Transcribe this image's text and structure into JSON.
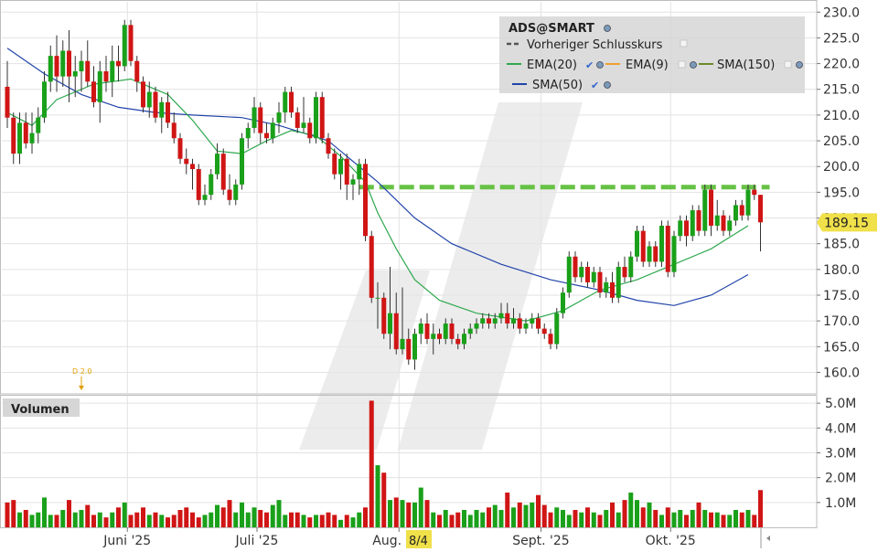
{
  "chart_data": [
    {
      "type": "candlestick",
      "title": "ADS@SMART",
      "ylim": [
        156,
        232
      ],
      "y_ticks": [
        230,
        225,
        220,
        215,
        210,
        205,
        200,
        195,
        190,
        185,
        180,
        175,
        170,
        165,
        160
      ],
      "y_tick_labels": [
        "230.0",
        "225.0",
        "220.0",
        "215.0",
        "210.0",
        "205.0",
        "200.0",
        "195.0",
        "190.0",
        "185.0",
        "180.0",
        "175.0",
        "170.0",
        "165.0",
        "160.0"
      ],
      "x_tick_labels": [
        "Juni '25",
        "Juli '25",
        "Aug. '25",
        "Sept. '25",
        "Okt. '25"
      ],
      "hover_date_label": "8/4",
      "dividend_marker": "D 2.0",
      "last_price_label": "189.15",
      "last_price": 189.15,
      "previous_close": 196.0,
      "legend": {
        "title": "ADS@SMART",
        "previous_close_label": "Vorheriger Schlusskurs",
        "ema20_label": "EMA(20)",
        "ema9_label": "EMA(9)",
        "sma150_label": "SMA(150)",
        "sma50_label": "SMA(50)"
      },
      "colors": {
        "up": "#1aa01a",
        "down": "#d01515",
        "ema20": "#2fa84f",
        "ema9": "#f0a030",
        "sma150": "#6a8a2a",
        "sma50": "#2244aa",
        "prev_close": "#66c244",
        "last_price_badge": "#f0e04a"
      },
      "candles": [
        [
          215.5,
          220.5,
          207.5,
          209.5
        ],
        [
          209.5,
          210.5,
          200.5,
          202.5
        ],
        [
          202.5,
          210.5,
          200.5,
          208.5
        ],
        [
          208.5,
          210.5,
          203.5,
          204.5
        ],
        [
          204.5,
          210.5,
          202.5,
          206.5
        ],
        [
          206.5,
          211.5,
          204.5,
          209.5
        ],
        [
          209.5,
          218.5,
          208.5,
          216.5
        ],
        [
          216.5,
          223.5,
          214.5,
          221.5
        ],
        [
          221.5,
          225.5,
          214.5,
          217.5
        ],
        [
          217.5,
          224.5,
          215.5,
          222.5
        ],
        [
          222.5,
          226.5,
          212.5,
          217.5
        ],
        [
          217.5,
          221.5,
          213.5,
          218.5
        ],
        [
          218.5,
          222.5,
          214.5,
          220.5
        ],
        [
          220.5,
          224.5,
          215.5,
          216.5
        ],
        [
          216.5,
          219.5,
          211.5,
          212.5
        ],
        [
          212.5,
          220.5,
          208.5,
          218.5
        ],
        [
          218.5,
          221.5,
          214.5,
          216.5
        ],
        [
          216.5,
          223.5,
          213.5,
          220.5
        ],
        [
          220.5,
          223.5,
          216.5,
          219.5
        ],
        [
          219.5,
          228.5,
          218.5,
          227.5
        ],
        [
          227.5,
          228.5,
          219.5,
          220.5
        ],
        [
          220.5,
          221.5,
          214.5,
          216.5
        ],
        [
          216.5,
          217.5,
          210.5,
          211.5
        ],
        [
          211.5,
          216.5,
          209.5,
          214.5
        ],
        [
          214.5,
          215.5,
          208.5,
          209.5
        ],
        [
          209.5,
          213.5,
          206.5,
          212.5
        ],
        [
          212.5,
          214.5,
          207.5,
          208.5
        ],
        [
          208.5,
          210.5,
          204.5,
          205.5
        ],
        [
          205.5,
          206.5,
          200.5,
          201.5
        ],
        [
          201.5,
          203.5,
          198.5,
          200.5
        ],
        [
          200.5,
          201.5,
          195.5,
          199.5
        ],
        [
          199.5,
          200.5,
          192.5,
          193.5
        ],
        [
          193.5,
          196.5,
          192.5,
          194.5
        ],
        [
          194.5,
          199.5,
          193.5,
          198.5
        ],
        [
          198.5,
          204.5,
          197.5,
          202.5
        ],
        [
          202.5,
          203.5,
          194.5,
          195.5
        ],
        [
          195.5,
          198.5,
          192.5,
          193.5
        ],
        [
          193.5,
          197.5,
          192.5,
          196.5
        ],
        [
          196.5,
          206.5,
          195.5,
          205.5
        ],
        [
          205.5,
          208.5,
          203.5,
          207.5
        ],
        [
          207.5,
          213.5,
          206.5,
          211.5
        ],
        [
          211.5,
          212.5,
          204.5,
          206.5
        ],
        [
          206.5,
          208.5,
          204.5,
          205.5
        ],
        [
          205.5,
          209.5,
          204.5,
          208.5
        ],
        [
          208.5,
          212.5,
          206.5,
          210.5
        ],
        [
          210.5,
          215.5,
          208.5,
          214.5
        ],
        [
          214.5,
          215.5,
          209.5,
          210.5
        ],
        [
          210.5,
          211.5,
          206.5,
          207.5
        ],
        [
          207.5,
          213.5,
          206.5,
          208.5
        ],
        [
          208.5,
          209.5,
          204.5,
          205.5
        ],
        [
          205.5,
          214.5,
          204.5,
          213.5
        ],
        [
          213.5,
          214.5,
          204.5,
          205.5
        ],
        [
          205.5,
          206.5,
          201.5,
          202.5
        ],
        [
          202.5,
          203.5,
          197.5,
          198.5
        ],
        [
          198.5,
          202.5,
          195.5,
          201.5
        ],
        [
          201.5,
          202.5,
          193.5,
          196.5
        ],
        [
          196.5,
          198.5,
          193.5,
          197.5
        ],
        [
          197.5,
          201.5,
          194.5,
          200.5
        ],
        [
          200.5,
          201.5,
          185.5,
          186.5
        ],
        [
          186.5,
          187.5,
          173.5,
          174.5
        ],
        [
          174.5,
          177.5,
          168.5,
          174.5
        ],
        [
          174.5,
          175.5,
          166.5,
          167.5
        ],
        [
          167.5,
          180.5,
          164.5,
          171.5
        ],
        [
          171.5,
          175.5,
          163.5,
          164.5
        ],
        [
          164.5,
          176.5,
          163.5,
          166.5
        ],
        [
          166.5,
          168.5,
          161.5,
          162.5
        ],
        [
          162.5,
          168.5,
          160.5,
          167.5
        ],
        [
          167.5,
          170.5,
          165.5,
          169.5
        ],
        [
          169.5,
          171.5,
          165.5,
          166.5
        ],
        [
          166.5,
          169.5,
          163.5,
          167.5
        ],
        [
          167.5,
          168.5,
          165.5,
          166.5
        ],
        [
          166.5,
          170.5,
          165.5,
          169.5
        ],
        [
          169.5,
          170.5,
          165.5,
          166.5
        ],
        [
          166.5,
          167.5,
          164.5,
          165.5
        ],
        [
          165.5,
          168.5,
          164.5,
          167.5
        ],
        [
          167.5,
          169.5,
          166.5,
          168.5
        ],
        [
          168.5,
          170.5,
          167.5,
          169.5
        ],
        [
          169.5,
          171.5,
          168.5,
          170.5
        ],
        [
          170.5,
          171.5,
          168.5,
          169.5
        ],
        [
          169.5,
          171.5,
          168.5,
          170.5
        ],
        [
          170.5,
          173.5,
          169.5,
          171.5
        ],
        [
          171.5,
          173.5,
          168.5,
          169.5
        ],
        [
          169.5,
          172.5,
          168.5,
          170.5
        ],
        [
          170.5,
          171.5,
          167.5,
          168.5
        ],
        [
          168.5,
          170.5,
          167.5,
          169.5
        ],
        [
          169.5,
          171.5,
          168.5,
          170.5
        ],
        [
          170.5,
          171.5,
          167.5,
          168.5
        ],
        [
          168.5,
          169.5,
          166.5,
          167.5
        ],
        [
          167.5,
          168.5,
          164.5,
          165.5
        ],
        [
          165.5,
          172.5,
          164.5,
          171.5
        ],
        [
          171.5,
          176.5,
          170.5,
          175.5
        ],
        [
          175.5,
          183.5,
          174.5,
          182.5
        ],
        [
          182.5,
          183.5,
          177.5,
          178.5
        ],
        [
          178.5,
          181.5,
          177.5,
          180.5
        ],
        [
          180.5,
          181.5,
          176.5,
          177.5
        ],
        [
          177.5,
          180.5,
          176.5,
          179.5
        ],
        [
          179.5,
          180.5,
          174.5,
          175.5
        ],
        [
          175.5,
          178.5,
          174.5,
          177.5
        ],
        [
          177.5,
          179.5,
          173.5,
          174.5
        ],
        [
          174.5,
          181.5,
          173.5,
          180.5
        ],
        [
          180.5,
          182.5,
          177.5,
          178.5
        ],
        [
          178.5,
          183.5,
          177.5,
          182.5
        ],
        [
          182.5,
          188.5,
          181.5,
          187.5
        ],
        [
          187.5,
          188.5,
          180.5,
          181.5
        ],
        [
          181.5,
          185.5,
          180.5,
          184.5
        ],
        [
          184.5,
          185.5,
          180.5,
          181.5
        ],
        [
          181.5,
          189.5,
          180.5,
          188.5
        ],
        [
          188.5,
          189.5,
          178.5,
          179.5
        ],
        [
          179.5,
          187.5,
          178.5,
          186.5
        ],
        [
          186.5,
          190.5,
          185.5,
          189.5
        ],
        [
          189.5,
          190.5,
          184.5,
          186.5
        ],
        [
          186.5,
          192.5,
          185.5,
          191.5
        ],
        [
          191.5,
          192.5,
          186.5,
          187.5
        ],
        [
          187.5,
          196.5,
          186.5,
          195.5
        ],
        [
          195.5,
          196.5,
          186.5,
          188.5
        ],
        [
          188.5,
          193.5,
          187.5,
          190.5
        ],
        [
          190.5,
          191.5,
          186.5,
          187.5
        ],
        [
          187.5,
          190.5,
          186.5,
          189.5
        ],
        [
          189.5,
          193.5,
          188.5,
          192.5
        ],
        [
          192.5,
          193.5,
          189.5,
          190.5
        ],
        [
          190.5,
          196.5,
          189.5,
          195.5
        ],
        [
          195.5,
          196.5,
          193.5,
          194.5
        ],
        [
          194.5,
          194.5,
          183.5,
          189.15
        ]
      ],
      "ema20": [
        [
          0,
          210.5
        ],
        [
          4,
          208
        ],
        [
          8,
          213
        ],
        [
          14,
          216
        ],
        [
          20,
          217
        ],
        [
          26,
          214
        ],
        [
          30,
          209
        ],
        [
          34,
          203
        ],
        [
          38,
          202.5
        ],
        [
          42,
          205
        ],
        [
          46,
          207
        ],
        [
          50,
          206
        ],
        [
          54,
          202
        ],
        [
          58,
          197
        ],
        [
          60,
          191
        ],
        [
          63,
          184
        ],
        [
          66,
          178
        ],
        [
          70,
          174
        ],
        [
          76,
          171.5
        ],
        [
          84,
          170
        ],
        [
          90,
          172
        ],
        [
          96,
          176
        ],
        [
          102,
          178
        ],
        [
          108,
          181
        ],
        [
          114,
          184
        ],
        [
          118,
          187
        ],
        [
          120,
          188.5
        ]
      ],
      "sma50": [
        [
          0,
          223
        ],
        [
          6,
          218
        ],
        [
          12,
          214
        ],
        [
          18,
          211.5
        ],
        [
          24,
          210.5
        ],
        [
          30,
          210
        ],
        [
          38,
          209.5
        ],
        [
          44,
          208
        ],
        [
          52,
          205
        ],
        [
          60,
          197
        ],
        [
          66,
          190
        ],
        [
          72,
          185
        ],
        [
          80,
          181
        ],
        [
          88,
          178
        ],
        [
          96,
          176
        ],
        [
          102,
          174
        ],
        [
          108,
          173
        ],
        [
          114,
          175
        ],
        [
          120,
          179
        ]
      ],
      "volume": {
        "ylim": [
          0,
          5.3
        ],
        "y_ticks": [
          1,
          2,
          3,
          4,
          5
        ],
        "y_tick_labels": [
          "1.0M",
          "2.0M",
          "3.0M",
          "4.0M",
          "5.0M"
        ],
        "section_label": "Volumen",
        "values": [
          1.0,
          1.1,
          0.6,
          0.7,
          0.5,
          0.6,
          1.2,
          0.5,
          0.5,
          0.7,
          1.1,
          0.6,
          0.7,
          0.9,
          0.5,
          0.6,
          0.4,
          0.6,
          0.8,
          1.0,
          0.5,
          0.6,
          0.8,
          0.5,
          0.6,
          0.5,
          0.4,
          0.5,
          0.7,
          0.8,
          0.6,
          0.4,
          0.5,
          0.6,
          0.9,
          0.8,
          1.1,
          0.6,
          1.0,
          0.6,
          0.8,
          0.7,
          0.6,
          0.9,
          1.1,
          0.5,
          0.6,
          0.6,
          0.5,
          0.4,
          0.5,
          0.5,
          0.6,
          0.5,
          0.3,
          0.5,
          0.4,
          0.6,
          0.8,
          5.1,
          2.5,
          2.2,
          1.1,
          1.2,
          1.1,
          1.0,
          1.0,
          1.6,
          1.1,
          0.6,
          0.5,
          0.7,
          0.5,
          0.6,
          0.7,
          0.5,
          0.7,
          0.6,
          0.8,
          0.9,
          0.7,
          1.4,
          0.8,
          1.0,
          0.9,
          1.0,
          1.3,
          0.9,
          0.6,
          0.8,
          0.7,
          0.5,
          0.7,
          0.6,
          0.8,
          0.6,
          0.5,
          0.7,
          1.0,
          0.6,
          1.1,
          1.4,
          1.1,
          0.8,
          1.0,
          0.7,
          0.5,
          0.8,
          0.6,
          0.7,
          0.5,
          0.7,
          1.0,
          0.7,
          0.6,
          0.6,
          0.5,
          0.5,
          0.7,
          0.6,
          0.7,
          0.5,
          1.5
        ]
      }
    }
  ]
}
